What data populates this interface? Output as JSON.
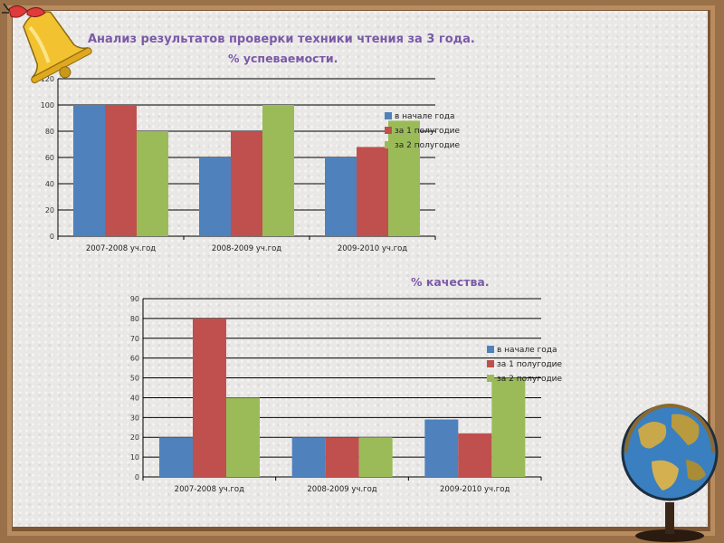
{
  "page": {
    "title": "Анализ результатов проверки техники чтения за 3 года.",
    "subtitle_1": "% успеваемости.",
    "subtitle_2": "% качества."
  },
  "colors": {
    "blue": "#4f81bd",
    "red": "#c0504d",
    "green": "#9bbb59",
    "title": "#7a5aa8"
  },
  "icons": [
    "bell-icon",
    "globe-icon"
  ],
  "chart_data": [
    {
      "type": "bar",
      "title": "% успеваемости.",
      "categories": [
        "2007-2008 уч.год",
        "2008-2009 уч.год",
        "2009-2010 уч.год"
      ],
      "series": [
        {
          "name": "в начале года",
          "values": [
            100,
            60,
            60
          ]
        },
        {
          "name": "за 1 полугодие",
          "values": [
            100,
            80,
            68
          ]
        },
        {
          "name": "за 2 полугодие",
          "values": [
            80,
            100,
            88
          ]
        }
      ],
      "ylim": [
        0,
        120
      ],
      "yticks": [
        "0",
        "20",
        "40",
        "60",
        "80",
        "100",
        "120"
      ],
      "grid": true,
      "legend": "right"
    },
    {
      "type": "bar",
      "title": "% качества.",
      "categories": [
        "2007-2008 уч.год",
        "2008-2009 уч.год",
        "2009-2010 уч.год"
      ],
      "series": [
        {
          "name": "в начале года",
          "values": [
            20,
            20,
            29
          ]
        },
        {
          "name": "за 1 полугодие",
          "values": [
            80,
            20,
            22
          ]
        },
        {
          "name": "за 2 полугодие",
          "values": [
            40,
            20,
            50
          ]
        }
      ],
      "ylim": [
        0,
        90
      ],
      "yticks": [
        "0",
        "10",
        "20",
        "30",
        "40",
        "50",
        "60",
        "70",
        "80",
        "90"
      ],
      "grid": true,
      "legend": "right"
    }
  ]
}
